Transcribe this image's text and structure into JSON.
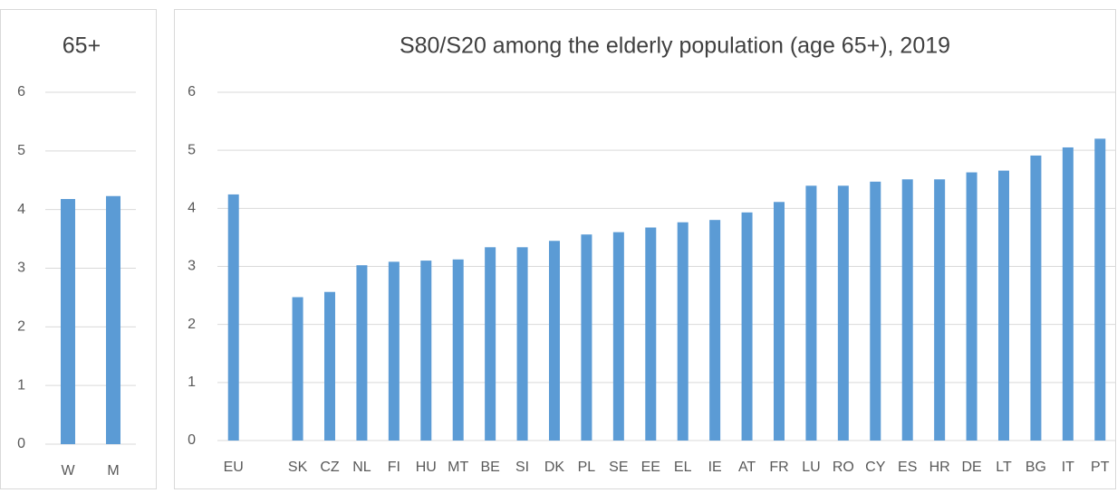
{
  "chart_data": [
    {
      "type": "bar",
      "title": "65+",
      "categories": [
        "W",
        "M"
      ],
      "values": [
        4.18,
        4.23
      ],
      "color": "#5b9bd5",
      "ylim": [
        0,
        6
      ],
      "yticks": [
        0,
        1,
        2,
        3,
        4,
        5,
        6
      ],
      "grid": true
    },
    {
      "type": "bar",
      "title": "S80/S20 among the elderly population (age 65+), 2019",
      "categories": [
        "EU",
        null,
        "SK",
        "CZ",
        "NL",
        "FI",
        "HU",
        "MT",
        "BE",
        "SI",
        "DK",
        "PL",
        "SE",
        "EE",
        "EL",
        "IE",
        "AT",
        "FR",
        "LU",
        "RO",
        "CY",
        "ES",
        "HR",
        "DE",
        "LT",
        "BG",
        "IT",
        "PT"
      ],
      "values": [
        4.24,
        null,
        2.47,
        2.56,
        3.02,
        3.08,
        3.1,
        3.12,
        3.33,
        3.33,
        3.44,
        3.55,
        3.59,
        3.67,
        3.76,
        3.8,
        3.93,
        4.11,
        4.39,
        4.39,
        4.46,
        4.5,
        4.5,
        4.62,
        4.65,
        4.91,
        5.05,
        5.2
      ],
      "color": "#5b9bd5",
      "ylim": [
        0,
        6
      ],
      "yticks": [
        0,
        1,
        2,
        3,
        4,
        5,
        6
      ],
      "grid": true
    }
  ]
}
